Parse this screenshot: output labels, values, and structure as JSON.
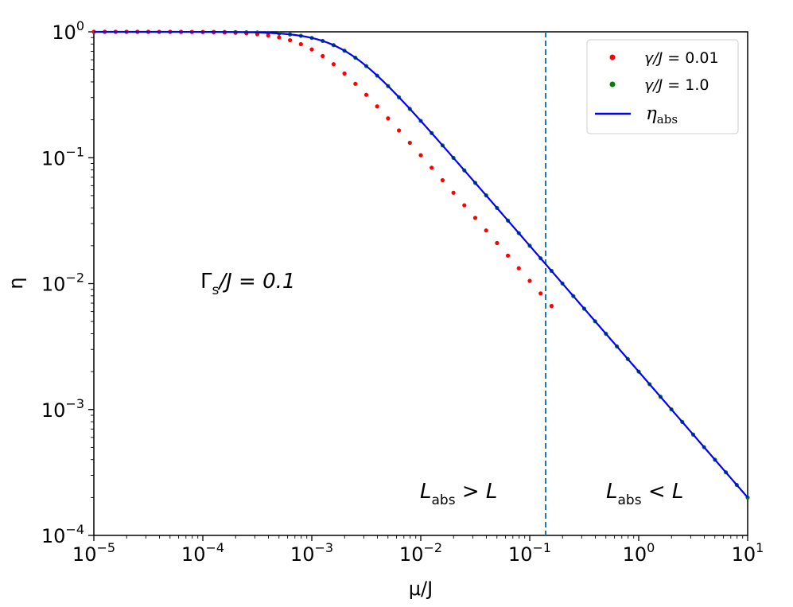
{
  "chart_data": {
    "type": "scatter",
    "xscale": "log",
    "yscale": "log",
    "xlim": [
      1e-05,
      10
    ],
    "ylim": [
      0.0001,
      1
    ],
    "xlabel": "μ/J",
    "ylabel": "η",
    "x_ticks": [
      {
        "base": "10",
        "exp": "−5",
        "value": 1e-05
      },
      {
        "base": "10",
        "exp": "−4",
        "value": 0.0001
      },
      {
        "base": "10",
        "exp": "−3",
        "value": 0.001
      },
      {
        "base": "10",
        "exp": "−2",
        "value": 0.01
      },
      {
        "base": "10",
        "exp": "−1",
        "value": 0.1
      },
      {
        "base": "10",
        "exp": "0",
        "value": 1
      },
      {
        "base": "10",
        "exp": "1",
        "value": 10
      }
    ],
    "y_ticks": [
      {
        "base": "10",
        "exp": "0",
        "value": 1
      },
      {
        "base": "10",
        "exp": "−1",
        "value": 0.1
      },
      {
        "base": "10",
        "exp": "−2",
        "value": 0.01
      },
      {
        "base": "10",
        "exp": "−3",
        "value": 0.001
      },
      {
        "base": "10",
        "exp": "−4",
        "value": 0.0001
      }
    ],
    "series": [
      {
        "name": "γ/J = 0.01",
        "style": "dots",
        "color": "#ff0000",
        "curve_param": 1.9,
        "x_range": [
          1e-05,
          0.17
        ]
      },
      {
        "name": "γ/J = 1.0",
        "style": "dots",
        "color": "#008000",
        "curve_param": 1.0,
        "x_range": [
          1e-05,
          10
        ]
      },
      {
        "name": "η_abs",
        "style": "line",
        "color": "#0000ff",
        "curve_param": 1.0,
        "x_range": [
          1e-05,
          10
        ]
      }
    ],
    "curve_model": "eta = 1 / (1 + (k * x / x0)^2)^0.5, x0 = 0.002",
    "vline": {
      "x": 0.14,
      "color": "#1f77b4",
      "style": "dashed"
    },
    "legend": {
      "position": "top-right",
      "entries": [
        {
          "label_math": "γ/J",
          "label_rest": " = 0.01",
          "color": "#ff0000",
          "marker": "dot"
        },
        {
          "label_math": "γ/J",
          "label_rest": " = 1.0",
          "color": "#008000",
          "marker": "dot"
        },
        {
          "label_main": "η",
          "label_sub": "abs",
          "color": "#0000ff",
          "marker": "line"
        }
      ]
    },
    "annotations": [
      {
        "id": "gamma",
        "main": "Γ",
        "sub": "s",
        "rest": "/J = 0.1"
      },
      {
        "id": "left-regime",
        "main": "L",
        "sub": "abs",
        "rest": " > L"
      },
      {
        "id": "right-regime",
        "main": "L",
        "sub": "abs",
        "rest": " < L"
      }
    ]
  }
}
